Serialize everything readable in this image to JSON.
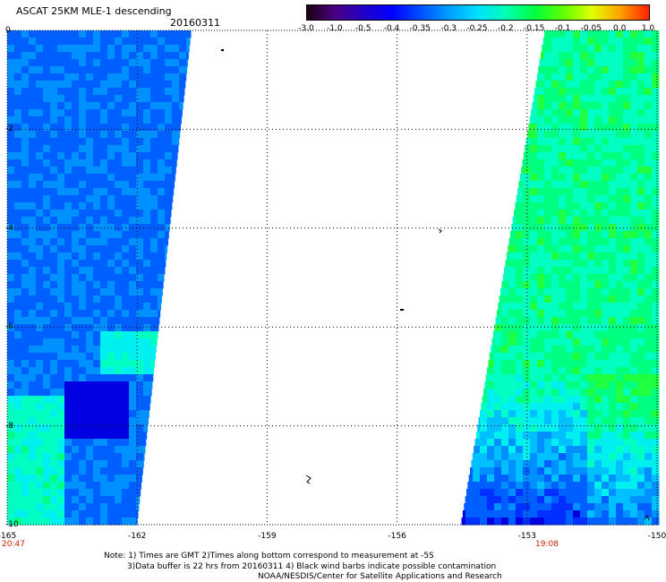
{
  "header": {
    "title": "ASCAT 25KM MLE-1 descending",
    "date": "20160311"
  },
  "colorbar": {
    "labels": [
      "-3.0",
      "-1.0",
      "-0.5",
      "-0.4",
      "-0.35",
      "-0.3",
      "-0.25",
      "-0.2",
      "-0.15",
      "-0.1",
      "-0.05",
      "0.0",
      "1.0"
    ],
    "colors": [
      "#1a0010",
      "#4b0082",
      "#2000c8",
      "#0000ff",
      "#0050ff",
      "#00a0ff",
      "#00e0ff",
      "#00ffb0",
      "#00ff40",
      "#60ff00",
      "#e0ff00",
      "#ffa000",
      "#ff2000"
    ]
  },
  "map": {
    "lon_labels": [
      "-165",
      "-162",
      "-159",
      "-156",
      "-153",
      "-150"
    ],
    "lat_labels": [
      "0",
      "-2",
      "-4",
      "-6",
      "-8",
      "-10"
    ],
    "time_labels": {
      "left": "20:47",
      "right": "19:08"
    }
  },
  "footer": {
    "line1": "Note: 1) Times are GMT 2)Times along bottom correspond to measurement at -5S",
    "line2": "3)Data buffer is 22 hrs from 20160311 4) Black wind barbs indicate possible contamination",
    "line3": "NOAA/NESDIS/Center for Satellite Applications and Research"
  }
}
